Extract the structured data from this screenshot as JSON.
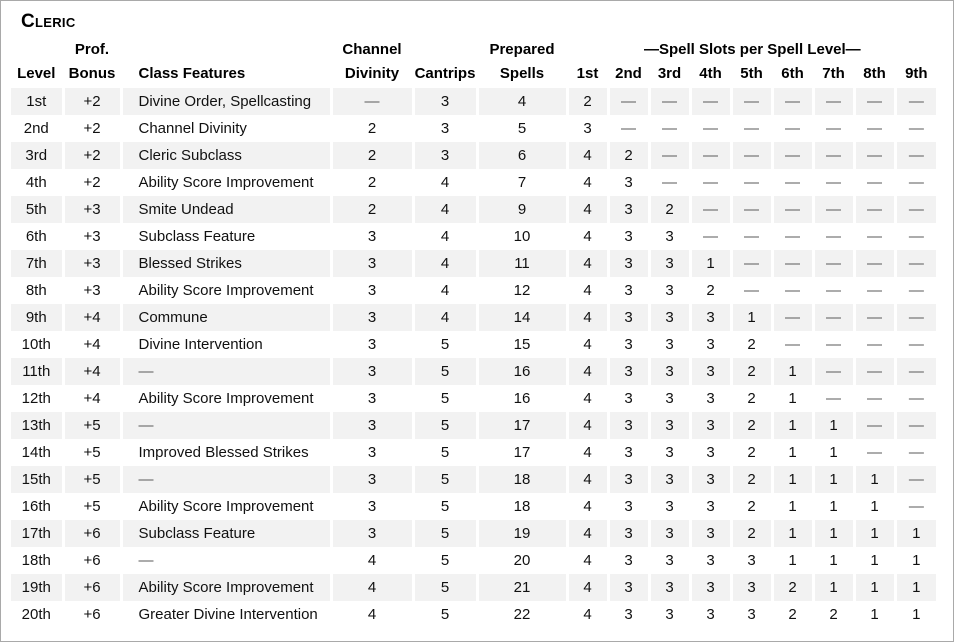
{
  "page": {
    "title": "Cleric"
  },
  "colors": {
    "stripe": "#f2f2f2",
    "text": "#111111",
    "dash_text": "#595959",
    "page_border": "#a9a9a9"
  },
  "table": {
    "slots_banner": "—Spell Slots per Spell Level—",
    "headers": {
      "level": "Level",
      "prof_bonus_line1": "Prof.",
      "prof_bonus_line2": "Bonus",
      "class_features": "Class Features",
      "channel_line1": "Channel",
      "channel_line2": "Divinity",
      "cantrips": "Cantrips",
      "prepared_line1": "Prepared",
      "prepared_line2": "Spells",
      "slot_levels": [
        "1st",
        "2nd",
        "3rd",
        "4th",
        "5th",
        "6th",
        "7th",
        "8th",
        "9th"
      ]
    },
    "rows": [
      {
        "level": "1st",
        "prof_bonus": "+2",
        "class_features": "Divine Order, Spellcasting",
        "channel_divinity": "—",
        "cantrips": "3",
        "prepared_spells": "4",
        "slots": [
          "2",
          "—",
          "—",
          "—",
          "—",
          "—",
          "—",
          "—",
          "—"
        ]
      },
      {
        "level": "2nd",
        "prof_bonus": "+2",
        "class_features": "Channel Divinity",
        "channel_divinity": "2",
        "cantrips": "3",
        "prepared_spells": "5",
        "slots": [
          "3",
          "—",
          "—",
          "—",
          "—",
          "—",
          "—",
          "—",
          "—"
        ]
      },
      {
        "level": "3rd",
        "prof_bonus": "+2",
        "class_features": "Cleric Subclass",
        "channel_divinity": "2",
        "cantrips": "3",
        "prepared_spells": "6",
        "slots": [
          "4",
          "2",
          "—",
          "—",
          "—",
          "—",
          "—",
          "—",
          "—"
        ]
      },
      {
        "level": "4th",
        "prof_bonus": "+2",
        "class_features": "Ability Score Improvement",
        "channel_divinity": "2",
        "cantrips": "4",
        "prepared_spells": "7",
        "slots": [
          "4",
          "3",
          "—",
          "—",
          "—",
          "—",
          "—",
          "—",
          "—"
        ]
      },
      {
        "level": "5th",
        "prof_bonus": "+3",
        "class_features": "Smite Undead",
        "channel_divinity": "2",
        "cantrips": "4",
        "prepared_spells": "9",
        "slots": [
          "4",
          "3",
          "2",
          "—",
          "—",
          "—",
          "—",
          "—",
          "—"
        ]
      },
      {
        "level": "6th",
        "prof_bonus": "+3",
        "class_features": "Subclass Feature",
        "channel_divinity": "3",
        "cantrips": "4",
        "prepared_spells": "10",
        "slots": [
          "4",
          "3",
          "3",
          "—",
          "—",
          "—",
          "—",
          "—",
          "—"
        ]
      },
      {
        "level": "7th",
        "prof_bonus": "+3",
        "class_features": "Blessed Strikes",
        "channel_divinity": "3",
        "cantrips": "4",
        "prepared_spells": "11",
        "slots": [
          "4",
          "3",
          "3",
          "1",
          "—",
          "—",
          "—",
          "—",
          "—"
        ]
      },
      {
        "level": "8th",
        "prof_bonus": "+3",
        "class_features": "Ability Score Improvement",
        "channel_divinity": "3",
        "cantrips": "4",
        "prepared_spells": "12",
        "slots": [
          "4",
          "3",
          "3",
          "2",
          "—",
          "—",
          "—",
          "—",
          "—"
        ]
      },
      {
        "level": "9th",
        "prof_bonus": "+4",
        "class_features": "Commune",
        "channel_divinity": "3",
        "cantrips": "4",
        "prepared_spells": "14",
        "slots": [
          "4",
          "3",
          "3",
          "3",
          "1",
          "—",
          "—",
          "—",
          "—"
        ]
      },
      {
        "level": "10th",
        "prof_bonus": "+4",
        "class_features": "Divine Intervention",
        "channel_divinity": "3",
        "cantrips": "5",
        "prepared_spells": "15",
        "slots": [
          "4",
          "3",
          "3",
          "3",
          "2",
          "—",
          "—",
          "—",
          "—"
        ]
      },
      {
        "level": "11th",
        "prof_bonus": "+4",
        "class_features": "—",
        "channel_divinity": "3",
        "cantrips": "5",
        "prepared_spells": "16",
        "slots": [
          "4",
          "3",
          "3",
          "3",
          "2",
          "1",
          "—",
          "—",
          "—"
        ]
      },
      {
        "level": "12th",
        "prof_bonus": "+4",
        "class_features": "Ability Score Improvement",
        "channel_divinity": "3",
        "cantrips": "5",
        "prepared_spells": "16",
        "slots": [
          "4",
          "3",
          "3",
          "3",
          "2",
          "1",
          "—",
          "—",
          "—"
        ]
      },
      {
        "level": "13th",
        "prof_bonus": "+5",
        "class_features": "—",
        "channel_divinity": "3",
        "cantrips": "5",
        "prepared_spells": "17",
        "slots": [
          "4",
          "3",
          "3",
          "3",
          "2",
          "1",
          "1",
          "—",
          "—"
        ]
      },
      {
        "level": "14th",
        "prof_bonus": "+5",
        "class_features": "Improved Blessed Strikes",
        "channel_divinity": "3",
        "cantrips": "5",
        "prepared_spells": "17",
        "slots": [
          "4",
          "3",
          "3",
          "3",
          "2",
          "1",
          "1",
          "—",
          "—"
        ]
      },
      {
        "level": "15th",
        "prof_bonus": "+5",
        "class_features": "—",
        "channel_divinity": "3",
        "cantrips": "5",
        "prepared_spells": "18",
        "slots": [
          "4",
          "3",
          "3",
          "3",
          "2",
          "1",
          "1",
          "1",
          "—"
        ]
      },
      {
        "level": "16th",
        "prof_bonus": "+5",
        "class_features": "Ability Score Improvement",
        "channel_divinity": "3",
        "cantrips": "5",
        "prepared_spells": "18",
        "slots": [
          "4",
          "3",
          "3",
          "3",
          "2",
          "1",
          "1",
          "1",
          "—"
        ]
      },
      {
        "level": "17th",
        "prof_bonus": "+6",
        "class_features": "Subclass Feature",
        "channel_divinity": "3",
        "cantrips": "5",
        "prepared_spells": "19",
        "slots": [
          "4",
          "3",
          "3",
          "3",
          "2",
          "1",
          "1",
          "1",
          "1"
        ]
      },
      {
        "level": "18th",
        "prof_bonus": "+6",
        "class_features": "—",
        "channel_divinity": "4",
        "cantrips": "5",
        "prepared_spells": "20",
        "slots": [
          "4",
          "3",
          "3",
          "3",
          "3",
          "1",
          "1",
          "1",
          "1"
        ]
      },
      {
        "level": "19th",
        "prof_bonus": "+6",
        "class_features": "Ability Score Improvement",
        "channel_divinity": "4",
        "cantrips": "5",
        "prepared_spells": "21",
        "slots": [
          "4",
          "3",
          "3",
          "3",
          "3",
          "2",
          "1",
          "1",
          "1"
        ]
      },
      {
        "level": "20th",
        "prof_bonus": "+6",
        "class_features": "Greater Divine Intervention",
        "channel_divinity": "4",
        "cantrips": "5",
        "prepared_spells": "22",
        "slots": [
          "4",
          "3",
          "3",
          "3",
          "3",
          "2",
          "2",
          "1",
          "1"
        ]
      }
    ]
  }
}
